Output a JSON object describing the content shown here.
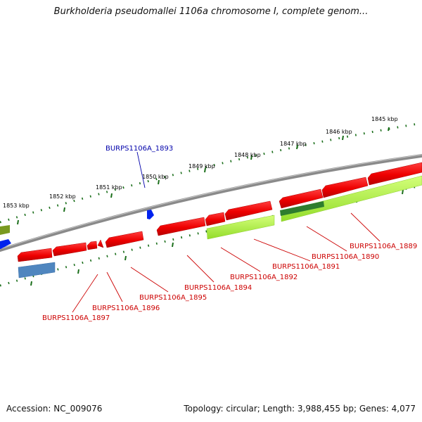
{
  "title": "Burkholderia pseudomallei 1106a chromosome I, complete genom...",
  "scale_labels": [
    "1845 kbp",
    "1846 kbp",
    "1847 kbp",
    "1848 kbp",
    "1849 kbp",
    "1850 kbp",
    "1851 kbp",
    "1852 kbp",
    "1853 kbp"
  ],
  "gene_labels": {
    "forward": [
      "BURPS1106A_1893"
    ],
    "reverse": [
      "BURPS1106A_1889",
      "BURPS1106A_1890",
      "BURPS1106A_1891",
      "BURPS1106A_1892",
      "BURPS1106A_1894",
      "BURPS1106A_1895",
      "BURPS1106A_1896",
      "BURPS1106A_1897"
    ]
  },
  "colors": {
    "cds": "#ee0000",
    "forward_label": "#0000aa",
    "reverse_label": "#cc0000",
    "backbone": "#8a8a8a",
    "ticks": "#1a6e1a",
    "lime": "#aaf03c",
    "dark_green": "#2e7d2e",
    "steel_blue": "#4f86bf",
    "blue": "#0022ee",
    "olive": "#7a9a20"
  },
  "footer": {
    "accession": "Accession: NC_009076",
    "summary": "Topology: circular; Length: 3,988,455 bp; Genes: 4,077"
  }
}
